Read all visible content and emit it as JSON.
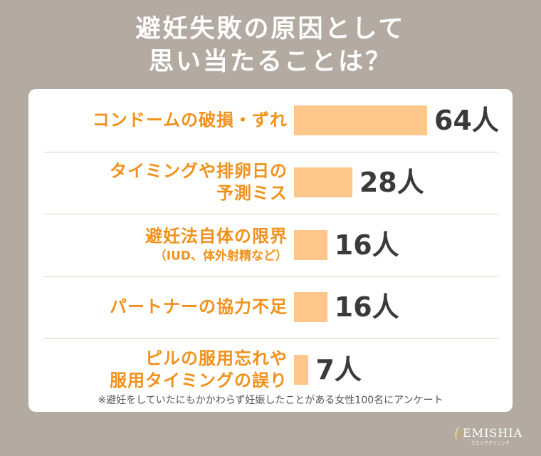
{
  "chart_data": {
    "type": "bar",
    "orientation": "horizontal",
    "title": "避妊失敗の原因として\n思い当たることは？",
    "categories": [
      "コンドームの破損・ずれ",
      "タイミングや排卵日の\n予測ミス",
      "避妊法自体の限界",
      "パートナーの協力不足",
      "ピルの服用忘れや\n服用タイミングの誤り"
    ],
    "category_notes": [
      null,
      null,
      "（IUD、体外射精など）",
      null,
      null
    ],
    "values": [
      64,
      28,
      16,
      16,
      7
    ],
    "value_labels": [
      "64人",
      "28人",
      "16人",
      "16人",
      "7人"
    ],
    "color": "#fdc68b",
    "footnote": "※避妊をしていたにもかかわらず妊娠したことがある女性100名にアンケート"
  },
  "brand": {
    "name": "EMISHIA",
    "subname": "エミシアクリニック"
  }
}
